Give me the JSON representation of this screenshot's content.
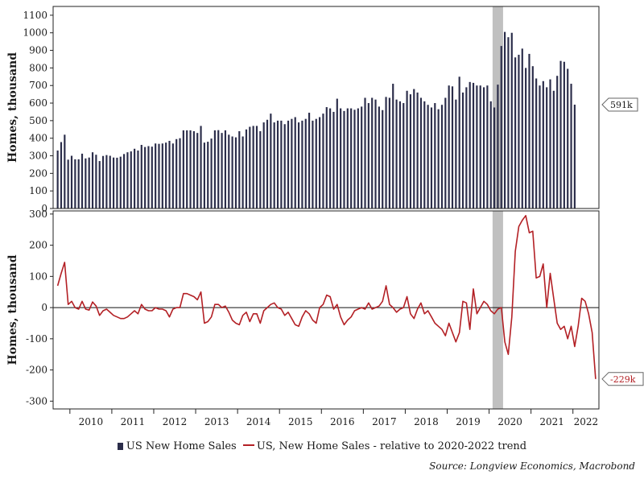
{
  "chart_data": [
    {
      "type": "bar",
      "ylabel": "Homes, thousand",
      "ylim": [
        0,
        1150
      ],
      "yticks": [
        0,
        100,
        200,
        300,
        400,
        500,
        600,
        700,
        800,
        900,
        1000,
        1100
      ],
      "x_start": "2009-09",
      "xlim": [
        2009.6,
        2022.62
      ],
      "year_labels": [
        "2010",
        "2011",
        "2012",
        "2013",
        "2014",
        "2015",
        "2016",
        "2017",
        "2018",
        "2019",
        "2020",
        "2021",
        "2022"
      ],
      "shaded_region": [
        "2020-02",
        "2020-05"
      ],
      "shade_color": "#c0c0c0",
      "series": [
        {
          "name": "US New Home Sales",
          "color": "#2b2d4a",
          "values": [
            330,
            378,
            420,
            278,
            300,
            280,
            280,
            312,
            285,
            290,
            320,
            306,
            270,
            299,
            304,
            300,
            290,
            289,
            295,
            310,
            320,
            325,
            340,
            330,
            362,
            350,
            355,
            352,
            370,
            368,
            370,
            375,
            385,
            370,
            395,
            400,
            445,
            445,
            445,
            440,
            430,
            470,
            375,
            380,
            398,
            445,
            446,
            430,
            445,
            420,
            410,
            405,
            440,
            410,
            450,
            465,
            470,
            470,
            440,
            490,
            505,
            540,
            490,
            500,
            500,
            480,
            500,
            510,
            520,
            490,
            500,
            510,
            545,
            500,
            510,
            520,
            540,
            577,
            570,
            550,
            625,
            570,
            555,
            570,
            570,
            562,
            570,
            580,
            630,
            600,
            630,
            620,
            580,
            560,
            635,
            630,
            710,
            620,
            610,
            600,
            670,
            650,
            680,
            660,
            630,
            610,
            590,
            575,
            600,
            565,
            590,
            630,
            700,
            695,
            620,
            750,
            660,
            690,
            720,
            715,
            700,
            700,
            690,
            700,
            610,
            575,
            705,
            925,
            1005,
            975,
            1000,
            860,
            875,
            910,
            800,
            880,
            810,
            740,
            700,
            725,
            690,
            735,
            670,
            755,
            840,
            835,
            795,
            710,
            591
          ]
        }
      ],
      "callout": "591k"
    },
    {
      "type": "line",
      "ylabel": "Homes, thousand",
      "ylim": [
        -325,
        310
      ],
      "yticks": [
        -300,
        -200,
        -100,
        0,
        100,
        200,
        300
      ],
      "x_start": "2009-09",
      "xlim": [
        2009.6,
        2022.62
      ],
      "year_labels": [
        "2010",
        "2011",
        "2012",
        "2013",
        "2014",
        "2015",
        "2016",
        "2017",
        "2018",
        "2019",
        "2020",
        "2021",
        "2022"
      ],
      "shaded_region": [
        "2020-02",
        "2020-05"
      ],
      "series": [
        {
          "name": "US, New Home Sales - relative to 2020-2022 trend",
          "color": "#b32025",
          "values": [
            70,
            110,
            145,
            10,
            20,
            0,
            -5,
            20,
            -5,
            -8,
            18,
            5,
            -25,
            -10,
            -5,
            -15,
            -25,
            -30,
            -35,
            -35,
            -30,
            -20,
            -10,
            -20,
            10,
            -5,
            -10,
            -10,
            0,
            -5,
            -5,
            -10,
            -30,
            -5,
            0,
            0,
            45,
            45,
            40,
            35,
            25,
            50,
            -50,
            -45,
            -30,
            10,
            10,
            0,
            5,
            -15,
            -40,
            -50,
            -55,
            -25,
            -15,
            -45,
            -20,
            -20,
            -50,
            -10,
            0,
            10,
            15,
            0,
            -5,
            -25,
            -15,
            -35,
            -55,
            -60,
            -30,
            -10,
            -20,
            -40,
            -50,
            0,
            10,
            40,
            35,
            -5,
            10,
            -30,
            -55,
            -40,
            -30,
            -10,
            -5,
            0,
            -5,
            15,
            -5,
            0,
            5,
            20,
            70,
            10,
            0,
            -15,
            -5,
            0,
            35,
            -20,
            -35,
            -5,
            15,
            -20,
            -10,
            -30,
            -50,
            -60,
            -70,
            -90,
            -50,
            -80,
            -110,
            -80,
            20,
            15,
            -70,
            60,
            -20,
            0,
            20,
            10,
            -10,
            -20,
            -5,
            0,
            -110,
            -150,
            -30,
            180,
            260,
            280,
            295,
            240,
            245,
            95,
            100,
            140,
            0,
            110,
            30,
            -50,
            -70,
            -60,
            -100,
            -60,
            -125,
            -60,
            30,
            20,
            -20,
            -80,
            -229
          ]
        }
      ],
      "callout": "-229k"
    }
  ],
  "legend": {
    "bar_label": "US New Home Sales",
    "line_label": "US, New Home Sales - relative to 2020-2022 trend"
  },
  "source": "Source: Longview Economics, Macrobond"
}
